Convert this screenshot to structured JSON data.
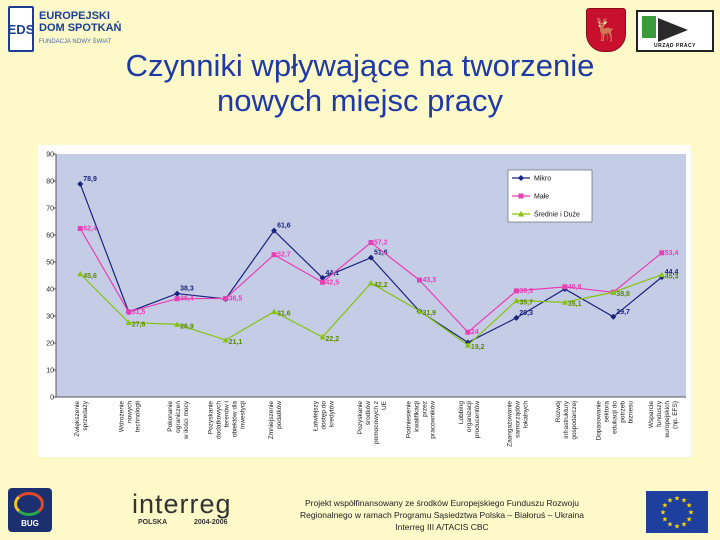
{
  "header": {
    "logo_mark": "EDS",
    "logo_line1": "EUROPEJSKI",
    "logo_line2": "DOM SPOTKAŃ",
    "logo_line3": "FUNDACJA NOWY ŚWIAT",
    "crest_icon": "deer-crest-icon",
    "office_logo_text": "URZĄD PRACY"
  },
  "title": {
    "line1": "Czynniki wpływające na tworzenie",
    "line2": "nowych miejsc pracy"
  },
  "chart_data": {
    "type": "line",
    "categories": [
      [
        "Zwiększenie",
        "sprzedaży"
      ],
      [
        "Wdrożenie",
        "nowych",
        "technologii"
      ],
      [
        "Pokonanie",
        "ograniczeń",
        "w ilości mocy"
      ],
      [
        "Pozyskanie",
        "dodatkowych",
        "terenów i",
        "obiektów dla",
        "inwestycji"
      ],
      [
        "Zmniejszenie",
        "podatków"
      ],
      [
        "Łatwiejszy",
        "dostęp do",
        "kredytów"
      ],
      [
        "Pozyskanie",
        "środków",
        "pomocowych z",
        "UE"
      ],
      [
        "Podniesienie",
        "kwalifikacji",
        "przez",
        "pracowników"
      ],
      [
        "Lobbing",
        "organizacji",
        "producentów"
      ],
      [
        "Zaangażowanie",
        "samorządów",
        "lokalnych"
      ],
      [
        "Rozwój",
        "infrastruktury",
        "gospodarczej"
      ],
      [
        "Dopasowanie",
        "sektora",
        "edukacji do",
        "potrzeb",
        "biznesu"
      ],
      [
        "Wsparcie",
        "funduszy",
        "europejskich",
        "(np. EFS)"
      ]
    ],
    "series": [
      {
        "name": "Mikro",
        "color": "#1a237e",
        "marker": "diamond",
        "values": [
          78.9,
          31.5,
          38.3,
          36.3,
          61.6,
          44.1,
          51.6,
          31.8,
          20.2,
          29.3,
          40,
          29.7,
          44.4
        ],
        "labels": [
          "78,9",
          "",
          "38,3",
          "",
          "61,6",
          "44,1",
          "51,6",
          "",
          "",
          "29,3",
          "",
          "29,7",
          "44,4"
        ]
      },
      {
        "name": "Małe",
        "color": "#e83fb5",
        "marker": "square",
        "values": [
          62.4,
          31.5,
          36.4,
          36.5,
          52.7,
          42.5,
          57.2,
          43.3,
          24,
          39.3,
          40.8,
          38.8,
          53.4
        ],
        "labels": [
          "62,4",
          "31,5",
          "36,4",
          "36,5",
          "52,7",
          "42,5",
          "57,2",
          "43,3",
          "24",
          "39,3",
          "40,8",
          "",
          "53,4"
        ]
      },
      {
        "name": "Średnie i Duże",
        "color": "#86c20f",
        "marker": "triangle",
        "values": [
          45.6,
          27.6,
          26.9,
          21.1,
          31.6,
          22.2,
          42.2,
          31.9,
          19.2,
          35.7,
          35.1,
          38.8,
          45.3
        ],
        "labels": [
          "45,6",
          "27,6",
          "26,9",
          "21,1",
          "31,6",
          "22,2",
          "42,2",
          "31,9",
          "19,2",
          "35,7",
          "35,1",
          "38,8",
          "45,3"
        ]
      }
    ],
    "ylim": [
      0,
      90
    ],
    "yticks": [
      0,
      10,
      20,
      30,
      40,
      50,
      60,
      70,
      80,
      90
    ],
    "grid": false,
    "legend": "top-right"
  },
  "footer": {
    "left_logo_text": "BUG",
    "interreg_word": "interreg",
    "interreg_country": "POLSKA",
    "interreg_years": "2004-2006",
    "note_line1": "Projekt współfinansowany ze środków Europejskiego Funduszu Rozwoju",
    "note_line2": "Regionalnego w ramach Programu Sąsiedztwa Polska – Białoruś – Ukraina",
    "note_line3": "Interreg III A/TACIS CBC",
    "flag_icon": "eu-flag-icon"
  }
}
